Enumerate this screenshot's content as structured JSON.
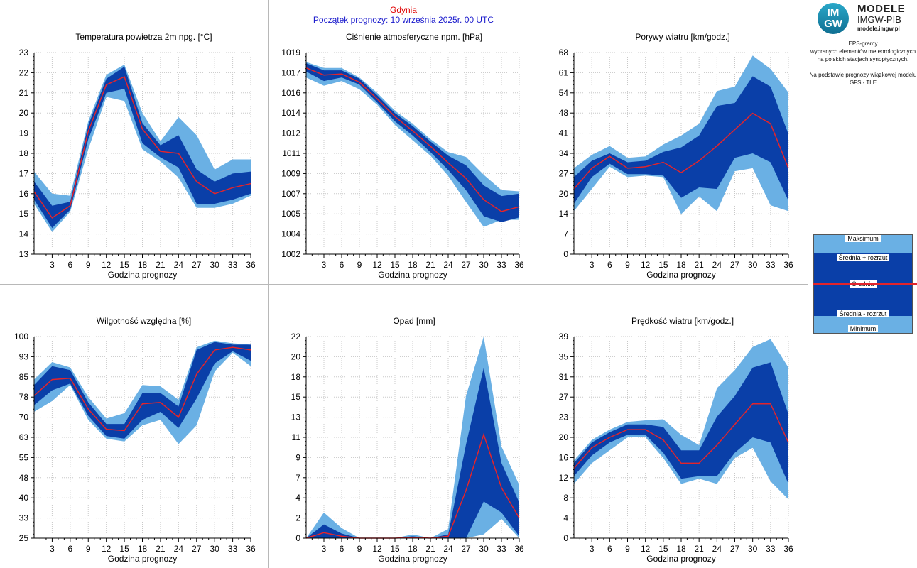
{
  "header": {
    "city": "Gdynia",
    "start": "Początek prognozy: 10 września 2025r. 00 UTC"
  },
  "colors": {
    "minmax_band": "#6ab0e4",
    "spread_band": "#0a3fa8",
    "mean_line": "#e3242b"
  },
  "sidebar": {
    "logo_letters": "IM GW",
    "logo_title": "MODELE",
    "logo_subtitle": "IMGW-PIB",
    "logo_url": "modele.imgw.pl",
    "desc1": "EPS-gramy",
    "desc2": "wybranych elementów meteorologicznych",
    "desc3": "na polskich stacjach  synoptycznych.",
    "desc4": "Na podstawie prognozy wiązkowej modelu",
    "desc5": "GFS - TLE",
    "legend": {
      "max": "Maksimum",
      "mean_plus": "Średnia + rozrzut",
      "mean": "Średnia",
      "mean_minus": "Średnia - rozrzut",
      "min": "Minimum"
    }
  },
  "chart_data": [
    {
      "id": "temperature",
      "type": "area",
      "title": "Temperatura powietrza 2m npg. [°C]",
      "xlabel": "Godzina prognozy",
      "x": [
        0,
        3,
        6,
        9,
        12,
        15,
        18,
        21,
        24,
        27,
        30,
        33,
        36
      ],
      "xticks": [
        "3",
        "6",
        "9",
        "12",
        "15",
        "18",
        "21",
        "24",
        "27",
        "30",
        "33",
        "36"
      ],
      "xlim": [
        0,
        36
      ],
      "ylim": [
        13,
        23
      ],
      "yticks": [
        "13",
        "14",
        "15",
        "16",
        "17",
        "18",
        "19",
        "20",
        "21",
        "22",
        "23"
      ],
      "series": [
        {
          "name": "Minimum",
          "values": [
            15.5,
            14.1,
            15.1,
            18.2,
            20.8,
            20.6,
            18.2,
            17.6,
            16.8,
            15.3,
            15.3,
            15.5,
            15.9
          ]
        },
        {
          "name": "Średnia - rozrzut",
          "values": [
            15.7,
            14.3,
            15.2,
            18.7,
            21.0,
            21.2,
            18.5,
            17.8,
            17.3,
            15.5,
            15.5,
            15.7,
            16.0
          ]
        },
        {
          "name": "Średnia",
          "values": [
            16.1,
            14.8,
            15.4,
            19.1,
            21.4,
            21.8,
            19.2,
            18.1,
            18.0,
            16.6,
            16.0,
            16.3,
            16.5
          ]
        },
        {
          "name": "Średnia + rozrzut",
          "values": [
            16.6,
            15.4,
            15.6,
            19.4,
            21.7,
            22.3,
            19.5,
            18.4,
            18.9,
            17.2,
            16.6,
            17.0,
            17.1
          ]
        },
        {
          "name": "Maksimum",
          "values": [
            17.1,
            16.0,
            15.9,
            19.6,
            21.9,
            22.4,
            20.0,
            18.6,
            19.8,
            18.9,
            17.2,
            17.7,
            17.7
          ]
        }
      ]
    },
    {
      "id": "pressure",
      "type": "area",
      "title": "Ciśnienie atmosferyczne npm. [hPa]",
      "xlabel": "Godzina prognozy",
      "x": [
        0,
        3,
        6,
        9,
        12,
        15,
        18,
        21,
        24,
        27,
        30,
        33,
        36
      ],
      "xticks": [
        "3",
        "6",
        "9",
        "12",
        "15",
        "18",
        "21",
        "24",
        "27",
        "30",
        "33",
        "36"
      ],
      "xlim": [
        0,
        36
      ],
      "ylim": [
        1002,
        1019
      ],
      "yticks": [
        "1002",
        "1004",
        "1005",
        "1007",
        "1009",
        "1011",
        "1012",
        "1014",
        "1016",
        "1017",
        "1019"
      ],
      "series": [
        {
          "name": "Minimum",
          "values": [
            1016.9,
            1016.2,
            1016.6,
            1015.9,
            1014.6,
            1012.9,
            1011.6,
            1010.3,
            1008.6,
            1006.4,
            1004.3,
            1004.9,
            1004.9
          ]
        },
        {
          "name": "Średnia - rozrzut",
          "values": [
            1017.4,
            1016.6,
            1016.9,
            1016.3,
            1014.8,
            1013.2,
            1012.0,
            1010.6,
            1009.1,
            1007.4,
            1005.2,
            1004.7,
            1005.1
          ]
        },
        {
          "name": "Średnia",
          "values": [
            1017.7,
            1017.1,
            1017.2,
            1016.5,
            1015.1,
            1013.6,
            1012.4,
            1011.1,
            1009.7,
            1008.4,
            1006.6,
            1005.6,
            1006.0
          ]
        },
        {
          "name": "Średnia + rozrzut",
          "values": [
            1018.1,
            1017.5,
            1017.5,
            1016.8,
            1015.4,
            1013.9,
            1012.8,
            1011.5,
            1010.3,
            1009.5,
            1007.8,
            1006.9,
            1007.1
          ]
        },
        {
          "name": "Maksimum",
          "values": [
            1018.2,
            1017.7,
            1017.7,
            1016.9,
            1015.6,
            1014.1,
            1013.0,
            1011.7,
            1010.6,
            1010.2,
            1008.7,
            1007.4,
            1007.3
          ]
        }
      ]
    },
    {
      "id": "gusts",
      "type": "area",
      "title": "Porywy wiatru [km/godz.]",
      "xlabel": "Godzina prognozy",
      "x": [
        0,
        3,
        6,
        9,
        12,
        15,
        18,
        21,
        24,
        27,
        30,
        33,
        36
      ],
      "xticks": [
        "3",
        "6",
        "9",
        "12",
        "15",
        "18",
        "21",
        "24",
        "27",
        "30",
        "33",
        "36"
      ],
      "xlim": [
        0,
        36
      ],
      "ylim": [
        0,
        68
      ],
      "yticks": [
        "0",
        "7",
        "14",
        "20",
        "27",
        "34",
        "41",
        "48",
        "54",
        "61",
        "68"
      ],
      "series": [
        {
          "name": "Minimum",
          "values": [
            14.5,
            22,
            29.5,
            26,
            26.5,
            26,
            13.5,
            19.5,
            14.5,
            28,
            29,
            16.5,
            14.5
          ]
        },
        {
          "name": "Średnia - rozrzut",
          "values": [
            17,
            26,
            30.5,
            27,
            27,
            26.5,
            19,
            22.5,
            22,
            32.5,
            34,
            31,
            18
          ]
        },
        {
          "name": "Średnia",
          "values": [
            22,
            29,
            33,
            29,
            29.5,
            31,
            27.5,
            31.5,
            36.5,
            42,
            47.5,
            44,
            29
          ]
        },
        {
          "name": "Średnia + rozrzut",
          "values": [
            26,
            31.5,
            34,
            31,
            31.5,
            34.5,
            36,
            40,
            50,
            51,
            60,
            56.5,
            40.5
          ]
        },
        {
          "name": "Maksimum",
          "values": [
            29,
            33.5,
            36.5,
            32.5,
            33,
            37,
            40,
            44,
            55,
            56.5,
            67,
            62.5,
            54.5
          ]
        }
      ]
    },
    {
      "id": "humidity",
      "type": "area",
      "title": "Wilgotność względna [%]",
      "xlabel": "Godzina prognozy",
      "x": [
        0,
        3,
        6,
        9,
        12,
        15,
        18,
        21,
        24,
        27,
        30,
        33,
        36
      ],
      "xticks": [
        "3",
        "6",
        "9",
        "12",
        "15",
        "18",
        "21",
        "24",
        "27",
        "30",
        "33",
        "36"
      ],
      "xlim": [
        0,
        36
      ],
      "ylim": [
        25,
        100
      ],
      "yticks": [
        "25",
        "33",
        "40",
        "48",
        "55",
        "63",
        "70",
        "78",
        "85",
        "93",
        "100"
      ],
      "series": [
        {
          "name": "Minimum",
          "values": [
            72,
            76,
            82,
            69,
            62,
            61,
            67,
            69,
            60,
            67,
            87,
            94,
            89
          ]
        },
        {
          "name": "Średnia - rozrzut",
          "values": [
            74.5,
            80,
            82.5,
            70.5,
            63,
            62,
            69,
            72,
            66,
            77,
            90,
            94.5,
            91
          ]
        },
        {
          "name": "Średnia",
          "values": [
            78,
            84,
            84.5,
            73,
            65.5,
            65,
            75,
            75.5,
            70,
            86,
            95,
            96,
            95
          ]
        },
        {
          "name": "Średnia + rozrzut",
          "values": [
            82,
            89,
            87.5,
            75.5,
            67.5,
            67.5,
            79,
            79,
            74,
            95,
            98,
            97,
            97
          ]
        },
        {
          "name": "Maksimum",
          "values": [
            84,
            90.5,
            88.5,
            77.5,
            69.5,
            71.5,
            82,
            81.5,
            76.5,
            96,
            98.5,
            97.5,
            97
          ]
        }
      ]
    },
    {
      "id": "precipitation",
      "type": "area",
      "title": "Opad [mm]",
      "xlabel": "Godzina prognozy",
      "x": [
        0,
        3,
        6,
        9,
        12,
        15,
        18,
        21,
        24,
        27,
        30,
        33,
        36
      ],
      "xticks": [
        "3",
        "6",
        "9",
        "12",
        "15",
        "18",
        "21",
        "24",
        "27",
        "30",
        "33",
        "36"
      ],
      "xlim": [
        0,
        36
      ],
      "ylim": [
        0,
        22
      ],
      "yticks": [
        "0",
        "2",
        "4",
        "7",
        "9",
        "11",
        "13",
        "15",
        "18",
        "20",
        "22"
      ],
      "series": [
        {
          "name": "Minimum",
          "values": [
            0,
            0,
            0,
            0,
            0,
            0,
            0,
            0,
            0,
            0,
            0.4,
            2.1,
            0
          ]
        },
        {
          "name": "Średnia - rozrzut",
          "values": [
            0,
            0,
            0,
            0,
            0,
            0,
            0,
            0,
            0,
            0,
            4,
            2.8,
            0.2
          ]
        },
        {
          "name": "Średnia",
          "values": [
            0,
            0.6,
            0.2,
            0,
            0,
            0,
            0.1,
            0,
            0.2,
            5.2,
            11.3,
            5.5,
            2.2
          ]
        },
        {
          "name": "Średnia + rozrzut",
          "values": [
            0,
            1.5,
            0.5,
            0,
            0,
            0,
            0.2,
            0,
            0.4,
            10.2,
            18.6,
            8.2,
            3.9
          ]
        },
        {
          "name": "Maksimum",
          "values": [
            0,
            2.8,
            1.1,
            0,
            0,
            0,
            0.4,
            0,
            1,
            15.5,
            22,
            10,
            5.8
          ]
        }
      ]
    },
    {
      "id": "wind",
      "type": "area",
      "title": "Prędkość wiatru [km/godz.]",
      "xlabel": "Godzina prognozy",
      "x": [
        0,
        3,
        6,
        9,
        12,
        15,
        18,
        21,
        24,
        27,
        30,
        33,
        36
      ],
      "xticks": [
        "3",
        "6",
        "9",
        "12",
        "15",
        "18",
        "21",
        "24",
        "27",
        "30",
        "33",
        "36"
      ],
      "xlim": [
        0,
        36
      ],
      "ylim": [
        0,
        39
      ],
      "yticks": [
        "0",
        "4",
        "8",
        "12",
        "16",
        "20",
        "23",
        "27",
        "31",
        "35",
        "39"
      ],
      "series": [
        {
          "name": "Minimum",
          "values": [
            10.5,
            14.5,
            17,
            19.5,
            19.5,
            15.5,
            10.5,
            11.5,
            10.5,
            15.5,
            17.5,
            11,
            7.5
          ]
        },
        {
          "name": "Średnia - rozrzut",
          "values": [
            12,
            16,
            18.5,
            20,
            20,
            16.5,
            11.5,
            12,
            12,
            16.5,
            19.5,
            18.5,
            10.5
          ]
        },
        {
          "name": "Średnia",
          "values": [
            13.5,
            17.5,
            19.5,
            21,
            21,
            19,
            14.5,
            14.5,
            18,
            22,
            26,
            26,
            18.5
          ]
        },
        {
          "name": "Średnia + rozrzut",
          "values": [
            14.5,
            18.5,
            20.5,
            22,
            22,
            21.5,
            17,
            17,
            23.5,
            27.5,
            33,
            34,
            24
          ]
        },
        {
          "name": "Maksimum",
          "values": [
            15,
            19,
            21,
            22.5,
            22.8,
            23,
            20,
            18,
            29,
            32.5,
            37,
            38.5,
            33
          ]
        }
      ]
    }
  ]
}
